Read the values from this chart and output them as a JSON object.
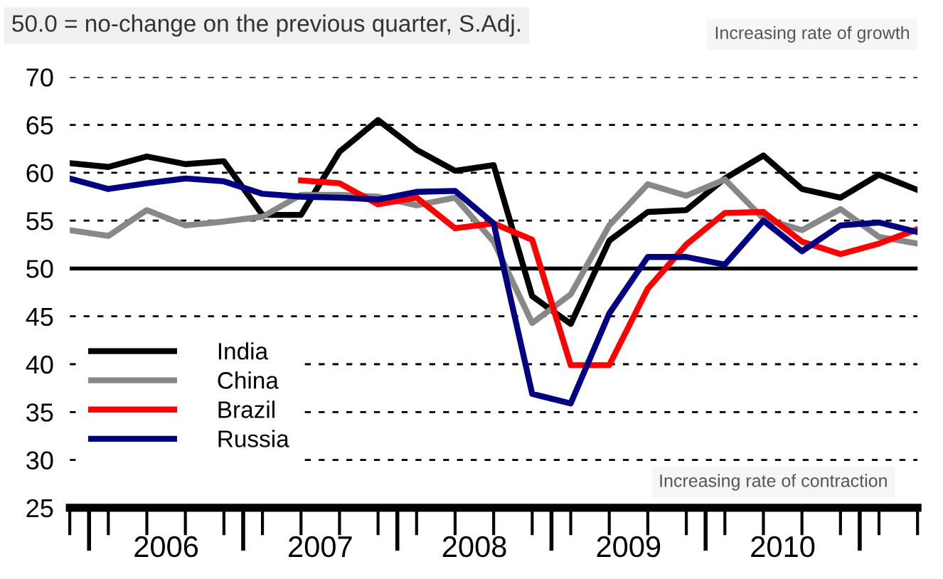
{
  "chart_data": {
    "type": "line",
    "subtitle": "50.0 = no-change on the previous quarter, S.Adj.",
    "annotations": [
      "Increasing rate of growth",
      "Increasing rate of contraction"
    ],
    "x": [
      2005.875,
      2006.125,
      2006.375,
      2006.625,
      2006.875,
      2007.125,
      2007.375,
      2007.625,
      2007.875,
      2008.125,
      2008.375,
      2008.625,
      2008.875,
      2009.125,
      2009.375,
      2009.625,
      2009.875,
      2010.125,
      2010.375,
      2010.625,
      2010.875,
      2011.125,
      2011.375
    ],
    "series": [
      {
        "name": "India",
        "color": "#000000",
        "values": [
          61.0,
          60.6,
          61.7,
          60.9,
          61.2,
          55.6,
          55.6,
          62.2,
          65.5,
          62.4,
          60.2,
          60.8,
          47.1,
          44.2,
          52.9,
          55.9,
          56.1,
          59.4,
          61.8,
          58.3,
          57.4,
          59.8,
          58.2
        ]
      },
      {
        "name": "China",
        "color": "#888888",
        "values": [
          54.0,
          53.4,
          56.1,
          54.5,
          54.9,
          55.4,
          57.7,
          57.7,
          57.5,
          56.6,
          57.4,
          52.8,
          44.3,
          47.3,
          54.5,
          58.8,
          57.6,
          59.3,
          55.2,
          54.0,
          56.2,
          53.3,
          52.6
        ]
      },
      {
        "name": "Brazil",
        "color": "#ff0000",
        "values": [
          null,
          null,
          null,
          null,
          null,
          null,
          59.2,
          58.9,
          56.7,
          57.4,
          54.2,
          54.7,
          53.0,
          39.9,
          39.9,
          47.9,
          52.5,
          55.8,
          55.9,
          52.8,
          51.5,
          52.6,
          54.1
        ]
      },
      {
        "name": "Russia",
        "color": "#000080",
        "values": [
          59.4,
          58.3,
          58.9,
          59.4,
          59.1,
          57.8,
          57.5,
          57.4,
          57.2,
          58.0,
          58.1,
          54.7,
          36.9,
          35.9,
          45.3,
          51.2,
          51.2,
          50.4,
          55.0,
          51.8,
          54.5,
          54.8,
          53.8
        ]
      }
    ],
    "xlim": [
      2005.875,
      2011.375
    ],
    "xticks": [
      {
        "value": 2006.5,
        "label": "2006"
      },
      {
        "value": 2007.5,
        "label": "2007"
      },
      {
        "value": 2008.5,
        "label": "2008"
      },
      {
        "value": 2009.5,
        "label": "2009"
      },
      {
        "value": 2010.5,
        "label": "2010"
      }
    ],
    "ylim": [
      25,
      70
    ],
    "yticks": [
      25,
      30,
      35,
      40,
      45,
      50,
      55,
      60,
      65,
      70
    ],
    "ref_lines": [
      {
        "axis": "y",
        "value": 50,
        "color": "#000000",
        "line_style": "solid"
      }
    ],
    "grid": "y",
    "legend": "bottom left",
    "line_style": "solid",
    "marker": "none"
  }
}
